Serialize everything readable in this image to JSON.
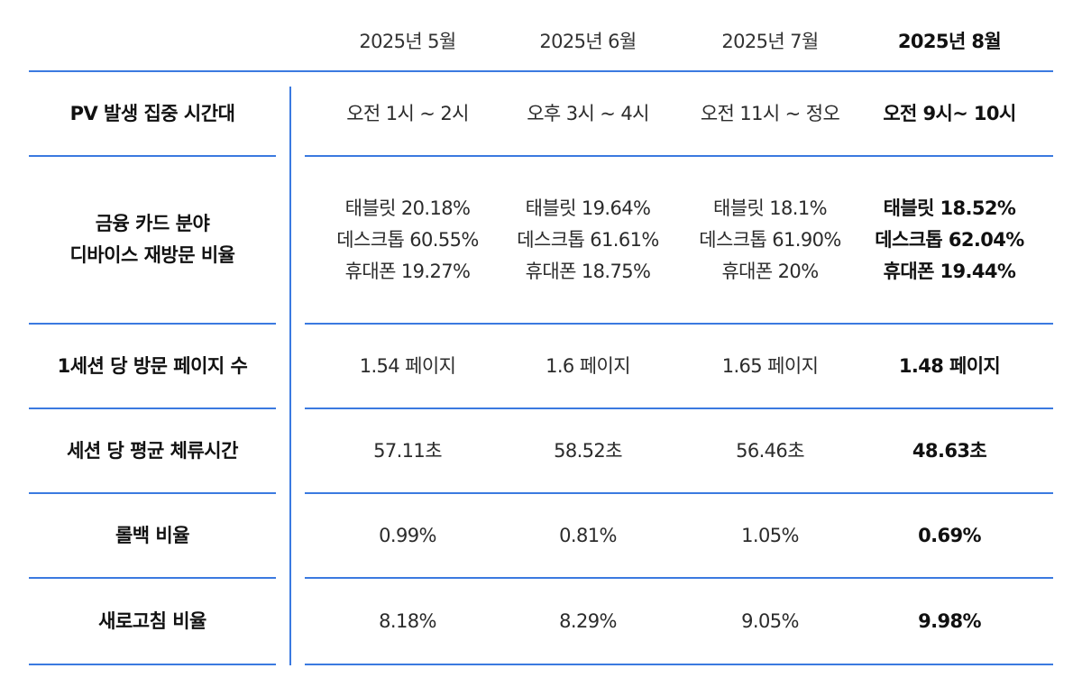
{
  "columns": [
    "2025년 5월",
    "2025년 6월",
    "2025년 7월",
    "2025년 8월"
  ],
  "rows": [
    {
      "label": [
        "PV 발생 집중 시간대"
      ],
      "values": [
        [
          "오전 1시 ~ 2시"
        ],
        [
          "오후 3시 ~ 4시"
        ],
        [
          "오전 11시 ~ 정오"
        ],
        [
          "오전 9시~ 10시"
        ]
      ]
    },
    {
      "label": [
        "금융 카드 분야",
        "디바이스 재방문 비율"
      ],
      "values": [
        [
          "태블릿 20.18%",
          "데스크톱 60.55%",
          "휴대폰 19.27%"
        ],
        [
          "태블릿 19.64%",
          "데스크톱 61.61%",
          "휴대폰 18.75%"
        ],
        [
          "태블릿 18.1%",
          "데스크톱 61.90%",
          "휴대폰 20%"
        ],
        [
          "태블릿 18.52%",
          "데스크톱 62.04%",
          "휴대폰 19.44%"
        ]
      ]
    },
    {
      "label": [
        "1세션 당 방문 페이지 수"
      ],
      "values": [
        [
          "1.54 페이지"
        ],
        [
          "1.6 페이지"
        ],
        [
          "1.65 페이지"
        ],
        [
          "1.48 페이지"
        ]
      ]
    },
    {
      "label": [
        "세션 당 평균 체류시간"
      ],
      "values": [
        [
          "57.11초"
        ],
        [
          "58.52초"
        ],
        [
          "56.46초"
        ],
        [
          "48.63초"
        ]
      ]
    },
    {
      "label": [
        "롤백 비율"
      ],
      "values": [
        [
          "0.99%"
        ],
        [
          "0.81%"
        ],
        [
          "1.05%"
        ],
        [
          "0.69%"
        ]
      ]
    },
    {
      "label": [
        "새로고침 비율"
      ],
      "values": [
        [
          "8.18%"
        ],
        [
          "8.29%"
        ],
        [
          "9.05%"
        ],
        [
          "9.98%"
        ]
      ]
    }
  ],
  "colors": {
    "rule": "#3b7ae0",
    "text": "#2b2b2b",
    "highlight_text": "#111111"
  }
}
